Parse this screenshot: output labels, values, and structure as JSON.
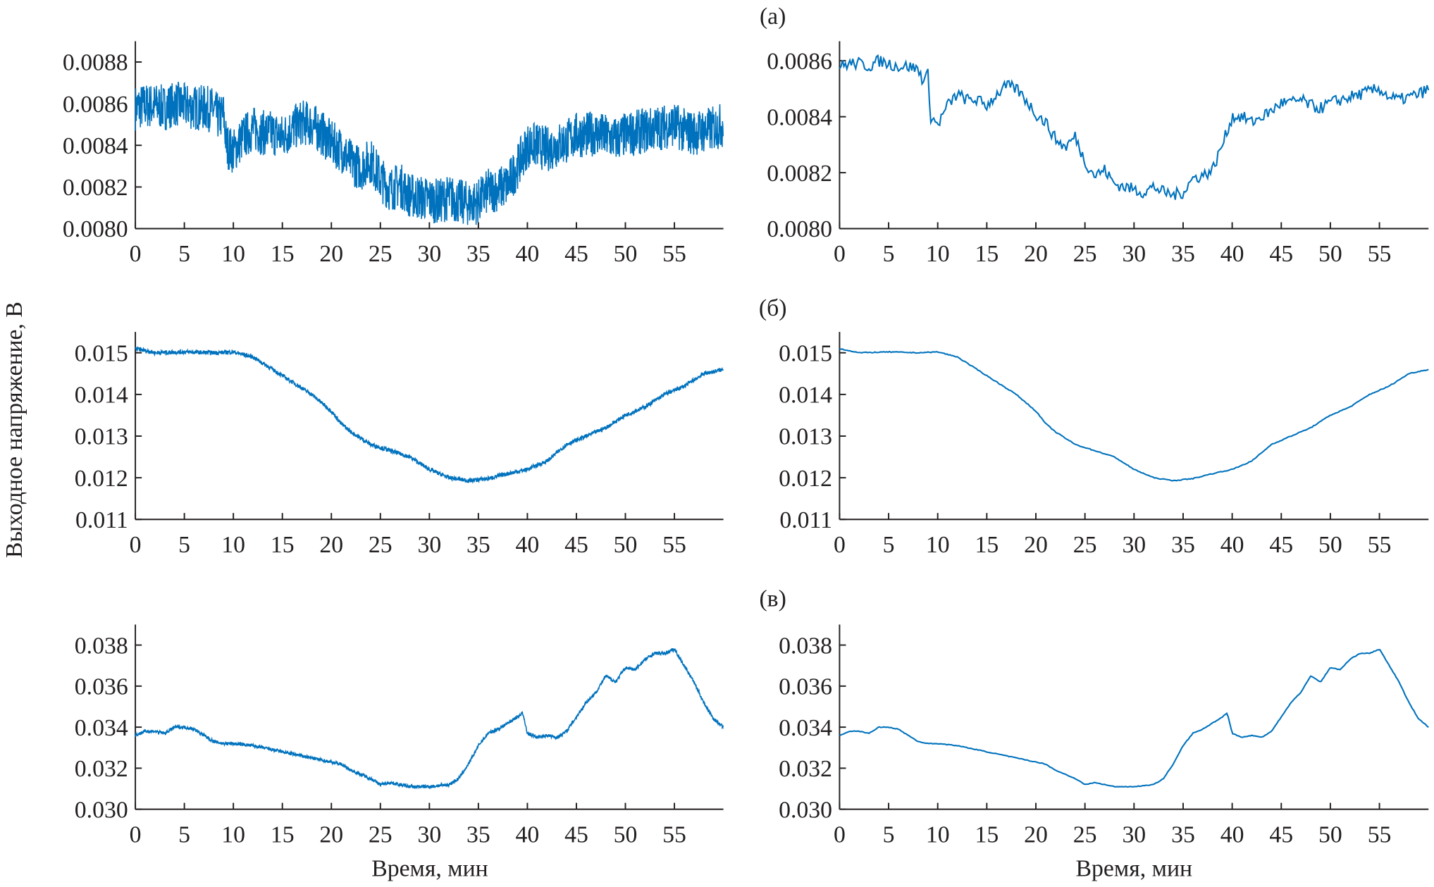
{
  "chart_data": {
    "type": "line",
    "ylabel": "Выходное напряжение, В",
    "xlabel": "Время, мин",
    "color": "#0072bd",
    "x_ticks": [
      "0",
      "5",
      "10",
      "15",
      "20",
      "25",
      "30",
      "35",
      "40",
      "45",
      "50",
      "55"
    ],
    "xlim": [
      0,
      60
    ],
    "rows": [
      {
        "label": "(а)",
        "ylim": [
          0.008,
          0.0089
        ],
        "left_ticks": [
          "0.0080",
          "0.0082",
          "0.0084",
          "0.0086",
          "0.0088"
        ],
        "right_ylim": [
          0.008,
          0.00867
        ],
        "right_ticks": [
          "0.0080",
          "0.0082",
          "0.0084",
          "0.0086"
        ],
        "noise": 0.00011,
        "x": [
          0,
          1,
          2,
          3,
          4,
          5,
          6,
          7,
          8,
          8.5,
          9,
          9.3,
          10,
          11,
          12,
          13,
          14,
          15,
          16,
          17,
          18,
          19,
          20,
          21,
          22,
          23,
          24,
          25,
          26,
          27,
          28,
          29,
          30,
          31,
          32,
          33,
          34,
          35,
          36,
          37,
          38,
          39,
          40,
          41,
          42,
          43,
          44,
          45,
          46,
          47,
          48,
          49,
          50,
          51,
          52,
          53,
          54,
          55,
          56,
          57,
          58,
          59,
          60
        ],
        "y": [
          0.00858,
          0.00859,
          0.00859,
          0.00858,
          0.0086,
          0.00859,
          0.00858,
          0.00858,
          0.00857,
          0.00853,
          0.00855,
          0.0084,
          0.00837,
          0.00844,
          0.00848,
          0.00846,
          0.00846,
          0.00844,
          0.00848,
          0.00851,
          0.0085,
          0.00846,
          0.00841,
          0.00838,
          0.00832,
          0.00829,
          0.00833,
          0.00824,
          0.00819,
          0.00821,
          0.00816,
          0.00815,
          0.00814,
          0.00813,
          0.00815,
          0.00813,
          0.00812,
          0.00813,
          0.00818,
          0.00819,
          0.00821,
          0.0083,
          0.0084,
          0.0084,
          0.00838,
          0.0084,
          0.00842,
          0.00845,
          0.00845,
          0.00846,
          0.00844,
          0.00843,
          0.00845,
          0.00846,
          0.00847,
          0.00848,
          0.00849,
          0.0085,
          0.00847,
          0.00846,
          0.00847,
          0.00848,
          0.0085
        ]
      },
      {
        "label": "(б)",
        "ylim": [
          0.011,
          0.0155
        ],
        "left_ticks": [
          "0.011",
          "0.012",
          "0.013",
          "0.014",
          "0.015"
        ],
        "right_ylim": [
          0.011,
          0.0155
        ],
        "right_ticks": [
          "0.011",
          "0.012",
          "0.013",
          "0.014",
          "0.015"
        ],
        "noise": 5e-05,
        "x": [
          0,
          2,
          5,
          8,
          10,
          12,
          14,
          16,
          18,
          20,
          21,
          22,
          24,
          26,
          28,
          30,
          32,
          34,
          36,
          38,
          40,
          42,
          44,
          46,
          48,
          50,
          52,
          54,
          56,
          58,
          60
        ],
        "y": [
          0.0151,
          0.015,
          0.01502,
          0.015,
          0.01502,
          0.0149,
          0.0146,
          0.0143,
          0.014,
          0.0136,
          0.0133,
          0.0131,
          0.0128,
          0.01265,
          0.0125,
          0.0122,
          0.012,
          0.01193,
          0.01198,
          0.0121,
          0.0122,
          0.0124,
          0.0128,
          0.013,
          0.0132,
          0.0135,
          0.0137,
          0.014,
          0.0142,
          0.0145,
          0.0146
        ]
      },
      {
        "label": "(в)",
        "ylim": [
          0.03,
          0.039
        ],
        "left_ticks": [
          "0.030",
          "0.032",
          "0.034",
          "0.036",
          "0.038"
        ],
        "right_ylim": [
          0.03,
          0.039
        ],
        "right_ticks": [
          "0.030",
          "0.032",
          "0.034",
          "0.036",
          "0.038"
        ],
        "noise": 8e-05,
        "x": [
          0,
          1,
          2,
          3,
          4,
          5,
          6,
          7,
          8,
          9,
          10,
          12,
          14,
          16,
          18,
          20,
          21,
          22,
          23,
          24,
          25,
          26,
          27,
          28,
          30,
          32,
          33,
          34,
          35,
          36,
          37,
          38,
          39,
          39.5,
          40,
          41,
          42,
          43,
          44,
          45,
          46,
          47,
          48,
          49,
          50,
          51,
          52,
          53,
          54,
          55,
          56,
          57,
          58,
          59,
          60
        ],
        "y": [
          0.0336,
          0.0338,
          0.0338,
          0.0337,
          0.034,
          0.034,
          0.0339,
          0.0336,
          0.0333,
          0.0332,
          0.0332,
          0.0331,
          0.0329,
          0.0327,
          0.0325,
          0.0323,
          0.0322,
          0.0319,
          0.0317,
          0.0315,
          0.0312,
          0.0313,
          0.0312,
          0.0311,
          0.0311,
          0.0312,
          0.0315,
          0.0322,
          0.0331,
          0.0337,
          0.0339,
          0.0342,
          0.0345,
          0.0347,
          0.0337,
          0.0335,
          0.0336,
          0.0335,
          0.0338,
          0.0345,
          0.0352,
          0.0357,
          0.0365,
          0.0362,
          0.0369,
          0.0368,
          0.0373,
          0.0376,
          0.0376,
          0.0378,
          0.037,
          0.0362,
          0.0352,
          0.0344,
          0.034
        ]
      }
    ]
  }
}
